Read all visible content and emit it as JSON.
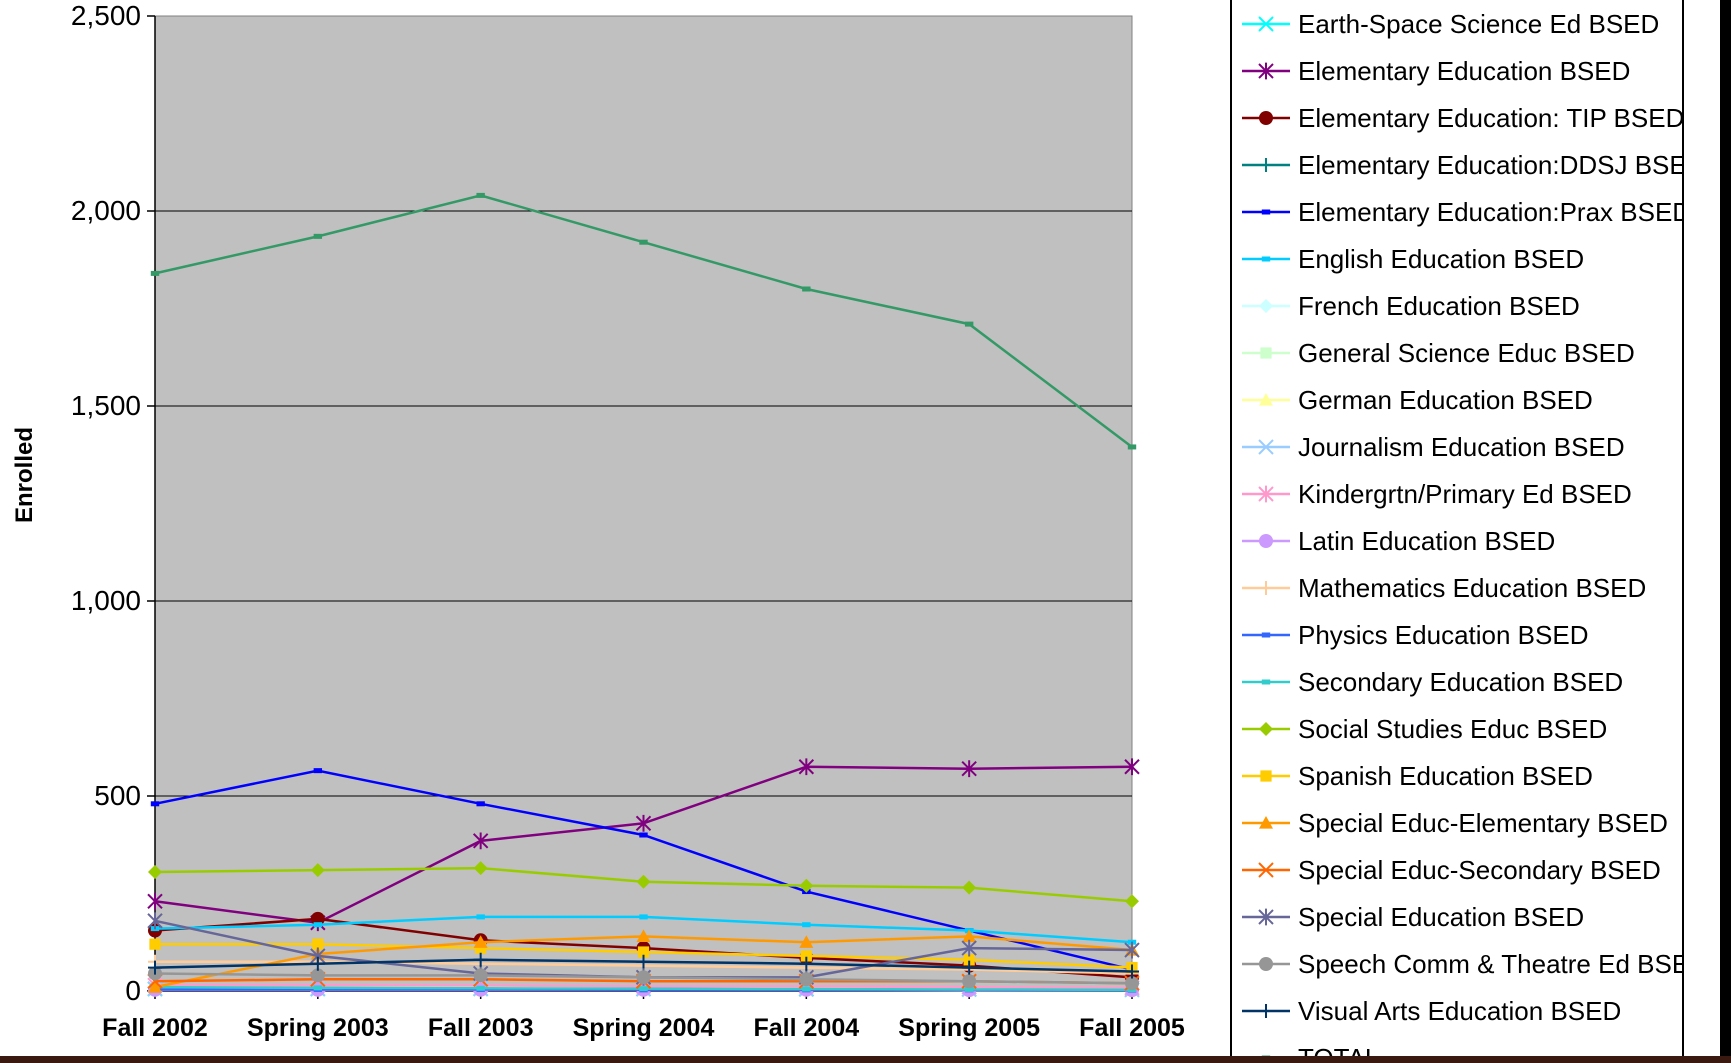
{
  "chart_data": {
    "type": "line",
    "title": "",
    "xlabel": "",
    "ylabel": "Enrolled",
    "ylim": [
      0,
      2500
    ],
    "yticks": [
      "0",
      "500",
      "1,000",
      "1,500",
      "2,000",
      "2,500"
    ],
    "ytick_values": [
      0,
      500,
      1000,
      1500,
      2000,
      2500
    ],
    "categories": [
      "Fall 2002",
      "Spring 2003",
      "Fall 2003",
      "Spring 2004",
      "Fall 2004",
      "Spring 2005",
      "Fall 2005"
    ],
    "grid": true,
    "plot_background": "#c0c0c0",
    "legend_position": "right",
    "series": [
      {
        "name": "Earth-Space Science Ed BSED",
        "color": "#00ffff",
        "marker": "x",
        "values": [
          5,
          5,
          6,
          5,
          5,
          4,
          3
        ]
      },
      {
        "name": "Elementary Education BSED",
        "color": "#800080",
        "marker": "star",
        "values": [
          230,
          175,
          385,
          430,
          575,
          570,
          575
        ]
      },
      {
        "name": "Elementary Education: TIP BSED",
        "color": "#800000",
        "marker": "circle",
        "values": [
          155,
          185,
          130,
          110,
          85,
          65,
          35
        ]
      },
      {
        "name": "Elementary Education:DDSJ BSED",
        "color": "#008080",
        "marker": "plus",
        "values": [
          8,
          8,
          8,
          6,
          6,
          5,
          4
        ]
      },
      {
        "name": "Elementary Education:Prax BSED",
        "color": "#0000ff",
        "marker": "dash",
        "values": [
          480,
          565,
          480,
          400,
          255,
          155,
          55
        ]
      },
      {
        "name": "English Education BSED",
        "color": "#00ccff",
        "marker": "dash",
        "values": [
          160,
          170,
          190,
          190,
          170,
          155,
          125
        ]
      },
      {
        "name": "French Education BSED",
        "color": "#ccffff",
        "marker": "diamond",
        "values": [
          5,
          5,
          5,
          4,
          4,
          3,
          3
        ]
      },
      {
        "name": "General Science Educ BSED",
        "color": "#ccffcc",
        "marker": "square",
        "values": [
          8,
          7,
          7,
          6,
          5,
          5,
          4
        ]
      },
      {
        "name": "German Education BSED",
        "color": "#ffff99",
        "marker": "triangle",
        "values": [
          10,
          8,
          9,
          8,
          7,
          6,
          5
        ]
      },
      {
        "name": "Journalism Education BSED",
        "color": "#99ccff",
        "marker": "x",
        "values": [
          6,
          6,
          5,
          5,
          4,
          4,
          3
        ]
      },
      {
        "name": "Kindergrtn/Primary Ed BSED",
        "color": "#ff99cc",
        "marker": "star",
        "values": [
          15,
          15,
          14,
          12,
          12,
          10,
          8
        ]
      },
      {
        "name": "Latin Education BSED",
        "color": "#cc99ff",
        "marker": "circle",
        "values": [
          3,
          3,
          3,
          3,
          3,
          2,
          2
        ]
      },
      {
        "name": "Mathematics Education BSED",
        "color": "#ffcc99",
        "marker": "plus",
        "values": [
          75,
          75,
          70,
          65,
          60,
          55,
          45
        ]
      },
      {
        "name": "Physics Education BSED",
        "color": "#3366ff",
        "marker": "dash",
        "values": [
          4,
          4,
          4,
          3,
          3,
          3,
          2
        ]
      },
      {
        "name": "Secondary Education BSED",
        "color": "#33cccc",
        "marker": "dash",
        "values": [
          10,
          8,
          7,
          6,
          5,
          4,
          3
        ]
      },
      {
        "name": "Social Studies Educ BSED",
        "color": "#99cc00",
        "marker": "diamond",
        "values": [
          305,
          310,
          315,
          280,
          270,
          265,
          230
        ]
      },
      {
        "name": "Spanish Education BSED",
        "color": "#ffcc00",
        "marker": "square",
        "values": [
          120,
          120,
          110,
          100,
          90,
          80,
          60
        ]
      },
      {
        "name": "Special Educ-Elementary BSED",
        "color": "#ff9900",
        "marker": "triangle",
        "values": [
          10,
          95,
          125,
          140,
          125,
          140,
          105
        ]
      },
      {
        "name": "Special Educ-Secondary BSED",
        "color": "#ff6600",
        "marker": "x",
        "values": [
          25,
          30,
          30,
          25,
          25,
          25,
          20
        ]
      },
      {
        "name": "Special Education BSED",
        "color": "#666699",
        "marker": "star",
        "values": [
          180,
          90,
          45,
          35,
          35,
          110,
          105
        ]
      },
      {
        "name": "Speech Comm & Theatre Ed BSED",
        "color": "#969696",
        "marker": "circle",
        "values": [
          45,
          40,
          40,
          35,
          30,
          25,
          20
        ]
      },
      {
        "name": "Visual Arts Education BSED",
        "color": "#003366",
        "marker": "plus",
        "values": [
          60,
          70,
          80,
          75,
          70,
          60,
          50
        ]
      },
      {
        "name": "TOTAL",
        "color": "#339966",
        "marker": "dash",
        "values": [
          1840,
          1935,
          2040,
          1920,
          1800,
          1710,
          1395
        ]
      }
    ]
  }
}
